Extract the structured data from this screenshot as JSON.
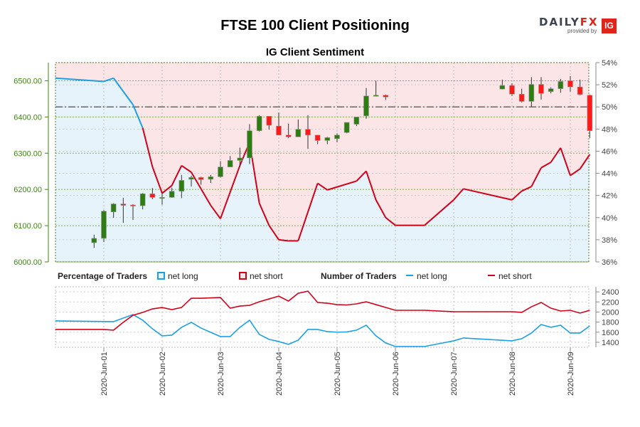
{
  "title": "FTSE 100 Client Positioning",
  "logo": {
    "brand": "DAILYFX",
    "tagline": "provided by",
    "ig": "IG"
  },
  "colors": {
    "long": "#1ba1e2",
    "short": "#d0021b",
    "bull": "#2e7d12",
    "bear": "#ff1a1a",
    "long_fill": "#e6f3fb",
    "short_fill": "#fbe5e6",
    "axis_green": "#3a8a0a"
  },
  "chart_data": [
    {
      "type": "candlestick+line",
      "title": "IG Client Sentiment",
      "x_unit": "hours since 2020-06-01 00:00",
      "y_left": {
        "range": [
          6000,
          6550
        ],
        "ticks": [
          "6000.00",
          "6100.00",
          "6200.00",
          "6300.00",
          "6400.00",
          "6500.00"
        ],
        "tick_values": [
          6000,
          6100,
          6200,
          6300,
          6400,
          6500
        ]
      },
      "y_right": {
        "range": [
          36,
          54
        ],
        "ticks": [
          "36%",
          "38%",
          "40%",
          "42%",
          "44%",
          "46%",
          "48%",
          "50%",
          "52%",
          "54%"
        ],
        "tick_values": [
          36,
          38,
          40,
          42,
          44,
          46,
          48,
          50,
          52,
          54
        ]
      },
      "reference_line_pct": 50,
      "x_ticks": [
        "2020-Jun-01",
        "2020-Jun-02",
        "2020-Jun-03",
        "2020-Jun-04",
        "2020-Jun-05",
        "2020-Jun-06",
        "2020-Jun-07",
        "2020-Jun-08",
        "2020-Jun-09"
      ],
      "candles": [
        [
          -4,
          6053,
          6075,
          6039,
          6065
        ],
        [
          0,
          6065,
          6143,
          6055,
          6140
        ],
        [
          4,
          6138,
          6162,
          6122,
          6160
        ],
        [
          8,
          6160,
          6177,
          6108,
          6156
        ],
        [
          12,
          6157,
          6159,
          6116,
          6155
        ],
        [
          16,
          6155,
          6190,
          6145,
          6188
        ],
        [
          20,
          6188,
          6204,
          6173,
          6178
        ],
        [
          24,
          6177,
          6190,
          6158,
          6178
        ],
        [
          28,
          6178,
          6205,
          6177,
          6195
        ],
        [
          32,
          6195,
          6240,
          6176,
          6225
        ],
        [
          36,
          6228,
          6238,
          6208,
          6233
        ],
        [
          40,
          6233,
          6235,
          6213,
          6227
        ],
        [
          44,
          6228,
          6240,
          6218,
          6235
        ],
        [
          48,
          6235,
          6278,
          6233,
          6262
        ],
        [
          52,
          6262,
          6292,
          6262,
          6280
        ],
        [
          56,
          6280,
          6315,
          6262,
          6287
        ],
        [
          60,
          6287,
          6380,
          6270,
          6362
        ],
        [
          64,
          6362,
          6405,
          6360,
          6402
        ],
        [
          68,
          6402,
          6402,
          6365,
          6377
        ],
        [
          72,
          6375,
          6412,
          6350,
          6350
        ],
        [
          76,
          6350,
          6381,
          6342,
          6345
        ],
        [
          80,
          6345,
          6393,
          6345,
          6366
        ],
        [
          84,
          6366,
          6405,
          6312,
          6350
        ],
        [
          88,
          6350,
          6350,
          6325,
          6335
        ],
        [
          92,
          6335,
          6345,
          6325,
          6343
        ],
        [
          96,
          6340,
          6355,
          6330,
          6350
        ],
        [
          100,
          6357,
          6383,
          6355,
          6385
        ],
        [
          104,
          6380,
          6400,
          6375,
          6400
        ],
        [
          108,
          6403,
          6480,
          6395,
          6458
        ],
        [
          112,
          6458,
          6500,
          6458,
          6460
        ],
        [
          116,
          6460,
          6462,
          6447,
          6455
        ],
        [
          164,
          6477,
          6503,
          6476,
          6487
        ],
        [
          168,
          6487,
          6493,
          6458,
          6463
        ],
        [
          172,
          6463,
          6478,
          6440,
          6443
        ],
        [
          176,
          6443,
          6510,
          6428,
          6490
        ],
        [
          180,
          6490,
          6510,
          6448,
          6465
        ],
        [
          184,
          6470,
          6481,
          6465,
          6478
        ],
        [
          188,
          6478,
          6505,
          6467,
          6498
        ],
        [
          192,
          6500,
          6513,
          6470,
          6483
        ],
        [
          196,
          6483,
          6503,
          6460,
          6462
        ],
        [
          200,
          6460,
          6462,
          6342,
          6362
        ]
      ],
      "candle_fields": [
        "t",
        "open",
        "high",
        "low",
        "close"
      ],
      "net_long_pct": [
        [
          -20,
          52.6
        ],
        [
          0,
          52.3
        ],
        [
          4,
          52.6
        ],
        [
          12,
          50.2
        ],
        [
          16,
          48.1
        ],
        [
          20,
          44.6
        ],
        [
          24,
          42.2
        ],
        [
          28,
          42.9
        ],
        [
          32,
          44.7
        ],
        [
          36,
          44.1
        ],
        [
          40,
          42.6
        ],
        [
          44,
          41.1
        ],
        [
          48,
          39.9
        ],
        [
          56,
          44.7
        ],
        [
          60,
          46.8
        ],
        [
          64,
          41.3
        ],
        [
          68,
          39.3
        ],
        [
          72,
          38.0
        ],
        [
          76,
          37.9
        ],
        [
          80,
          37.9
        ],
        [
          88,
          43.1
        ],
        [
          92,
          42.5
        ],
        [
          104,
          43.3
        ],
        [
          108,
          44.2
        ],
        [
          112,
          41.6
        ],
        [
          116,
          40.0
        ],
        [
          120,
          39.3
        ],
        [
          132,
          39.3
        ],
        [
          144,
          41.6
        ],
        [
          148,
          42.6
        ],
        [
          168,
          41.6
        ],
        [
          172,
          42.4
        ],
        [
          176,
          42.8
        ],
        [
          180,
          44.5
        ],
        [
          184,
          45.0
        ],
        [
          188,
          46.3
        ],
        [
          192,
          43.8
        ],
        [
          196,
          44.4
        ],
        [
          200,
          45.7
        ]
      ]
    },
    {
      "type": "line",
      "title": "Number of Traders",
      "y_right": {
        "range": [
          1300,
          2500
        ],
        "ticks": [
          "1400",
          "1600",
          "1800",
          "2000",
          "2200",
          "2400"
        ],
        "tick_values": [
          1400,
          1600,
          1800,
          2000,
          2200,
          2400
        ]
      },
      "series": [
        {
          "name": "net long",
          "values": [
            [
              -20,
              1823
            ],
            [
              4,
              1809
            ],
            [
              12,
              1949
            ],
            [
              16,
              1837
            ],
            [
              20,
              1668
            ],
            [
              24,
              1527
            ],
            [
              28,
              1541
            ],
            [
              32,
              1696
            ],
            [
              36,
              1795
            ],
            [
              40,
              1682
            ],
            [
              44,
              1597
            ],
            [
              48,
              1513
            ],
            [
              52,
              1513
            ],
            [
              56,
              1696
            ],
            [
              60,
              1837
            ],
            [
              64,
              1555
            ],
            [
              68,
              1457
            ],
            [
              72,
              1414
            ],
            [
              76,
              1358
            ],
            [
              80,
              1442
            ],
            [
              84,
              1654
            ],
            [
              88,
              1654
            ],
            [
              92,
              1611
            ],
            [
              96,
              1600
            ],
            [
              100,
              1605
            ],
            [
              104,
              1640
            ],
            [
              108,
              1738
            ],
            [
              112,
              1527
            ],
            [
              116,
              1386
            ],
            [
              120,
              1316
            ],
            [
              132,
              1316
            ],
            [
              144,
              1428
            ],
            [
              148,
              1485
            ],
            [
              168,
              1428
            ],
            [
              172,
              1471
            ],
            [
              176,
              1583
            ],
            [
              180,
              1752
            ],
            [
              184,
              1696
            ],
            [
              188,
              1738
            ],
            [
              192,
              1583
            ],
            [
              196,
              1583
            ],
            [
              200,
              1724
            ]
          ]
        },
        {
          "name": "net short",
          "values": [
            [
              -20,
              1654
            ],
            [
              0,
              1654
            ],
            [
              4,
              1640
            ],
            [
              8,
              1795
            ],
            [
              12,
              1935
            ],
            [
              16,
              1992
            ],
            [
              20,
              2062
            ],
            [
              24,
              2090
            ],
            [
              28,
              2048
            ],
            [
              32,
              2090
            ],
            [
              36,
              2273
            ],
            [
              40,
              2273
            ],
            [
              48,
              2287
            ],
            [
              52,
              2076
            ],
            [
              56,
              2118
            ],
            [
              60,
              2132
            ],
            [
              64,
              2203
            ],
            [
              68,
              2259
            ],
            [
              72,
              2315
            ],
            [
              76,
              2217
            ],
            [
              80,
              2372
            ],
            [
              84,
              2414
            ],
            [
              88,
              2189
            ],
            [
              92,
              2175
            ],
            [
              96,
              2146
            ],
            [
              100,
              2140
            ],
            [
              104,
              2161
            ],
            [
              108,
              2203
            ],
            [
              112,
              2146
            ],
            [
              116,
              2090
            ],
            [
              120,
              2034
            ],
            [
              132,
              2034
            ],
            [
              144,
              2006
            ],
            [
              168,
              2006
            ],
            [
              172,
              1992
            ],
            [
              176,
              2104
            ],
            [
              180,
              2189
            ],
            [
              184,
              2076
            ],
            [
              188,
              2020
            ],
            [
              192,
              2034
            ],
            [
              196,
              1978
            ],
            [
              200,
              2034
            ]
          ]
        }
      ]
    }
  ],
  "legend": {
    "pct_title": "Percentage of Traders",
    "pct_long": "net long",
    "pct_short": "net short",
    "num_title": "Number of Traders",
    "num_long": "net long",
    "num_short": "net short"
  }
}
